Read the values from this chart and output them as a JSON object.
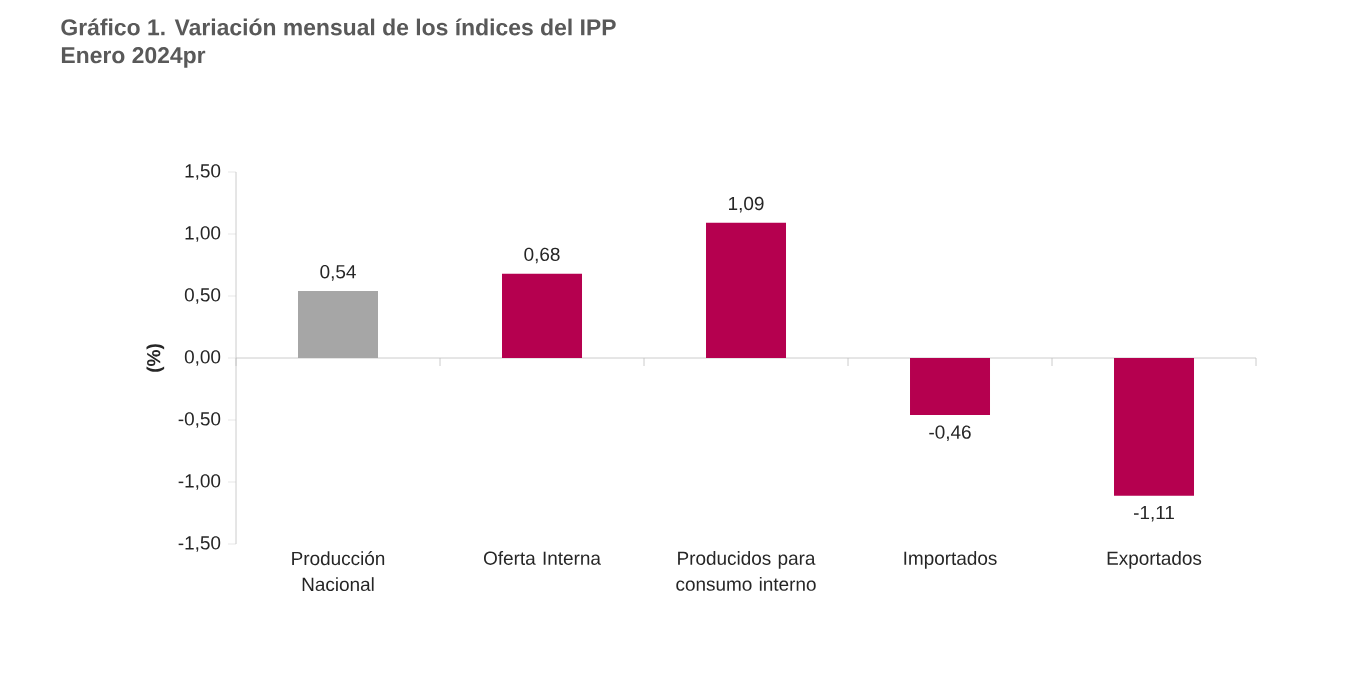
{
  "chart_data": {
    "type": "bar",
    "title": "Gráfico 1. Variación mensual de los índices del IPP",
    "subtitle": "Enero 2024pr",
    "ylabel": "(%)",
    "categories": [
      "Producción Nacional",
      "Oferta Interna",
      "Producidos para consumo interno",
      "Importados",
      "Exportados"
    ],
    "values": [
      0.54,
      0.68,
      1.09,
      -0.46,
      -1.11
    ],
    "colors": [
      "#a6a6a6",
      "#b5004f",
      "#b5004f",
      "#b5004f",
      "#b5004f"
    ],
    "value_labels": [
      "0,54",
      "0,68",
      "1,09",
      "-0,46",
      "-1,11"
    ],
    "ylim": [
      -1.5,
      1.5
    ],
    "yticks": [
      {
        "value": -1.5,
        "label": "-1,50"
      },
      {
        "value": -1.0,
        "label": "-1,00"
      },
      {
        "value": -0.5,
        "label": "-0,50"
      },
      {
        "value": 0.0,
        "label": "0,00"
      },
      {
        "value": 0.5,
        "label": "0,50"
      },
      {
        "value": 1.0,
        "label": "1,00"
      },
      {
        "value": 1.5,
        "label": "1,50"
      }
    ]
  }
}
